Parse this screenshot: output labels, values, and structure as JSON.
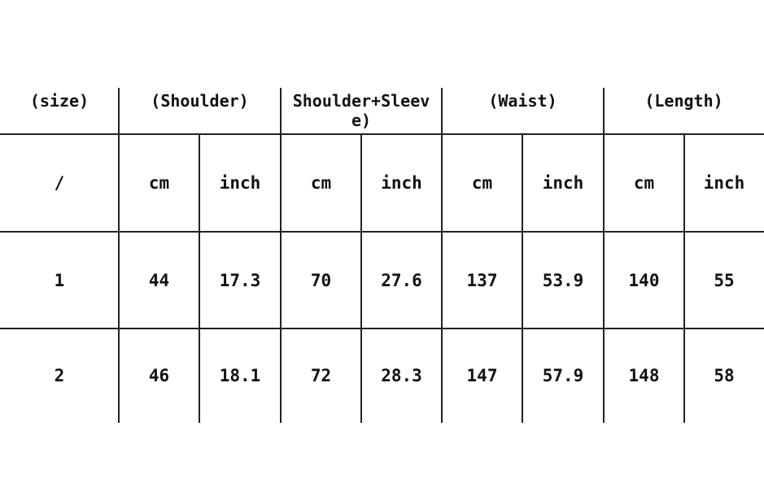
{
  "header": [
    "(size)",
    "(Shoulder)",
    "Shoulder+Sleeve)",
    "(Waist)",
    "(Length)"
  ],
  "units": [
    "/",
    "cm",
    "inch",
    "cm",
    "inch",
    "cm",
    "inch",
    "cm",
    "inch"
  ],
  "rows": [
    [
      "1",
      "44",
      "17.3",
      "70",
      "27.6",
      "137",
      "53.9",
      "140",
      "55"
    ],
    [
      "2",
      "46",
      "18.1",
      "72",
      "28.3",
      "147",
      "57.9",
      "148",
      "58"
    ]
  ]
}
